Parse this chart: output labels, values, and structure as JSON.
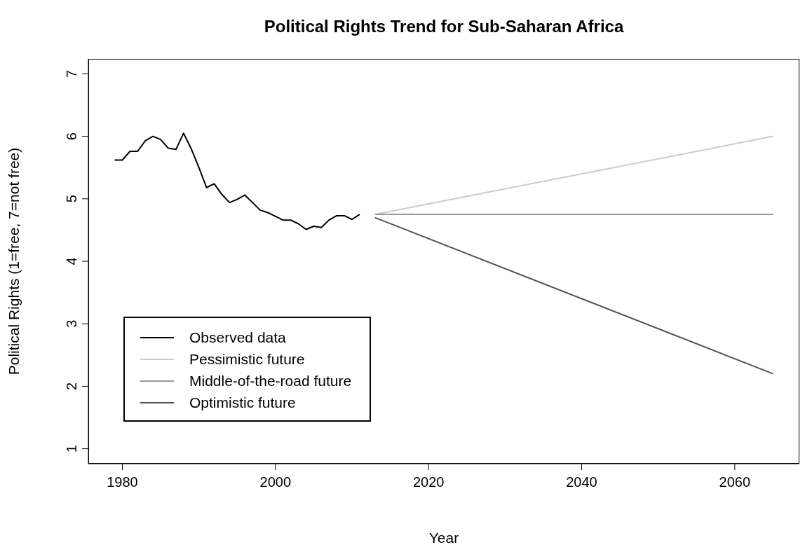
{
  "chart_data": {
    "type": "line",
    "title": "Political Rights Trend for Sub-Saharan Africa",
    "xlabel": "Year",
    "ylabel": "Political Rights (1=free, 7=not free)",
    "xlim": [
      1975.56,
      2068.44
    ],
    "xticks": [
      1980,
      2000,
      2020,
      2040,
      2060
    ],
    "ylim": [
      0.76,
      7.24
    ],
    "yticks": [
      1,
      2,
      3,
      4,
      5,
      6,
      7
    ],
    "grid": false,
    "legend": "bottom left",
    "marker": "none",
    "line_style": "solid",
    "series": [
      {
        "name": "Observed data",
        "color": "#000000",
        "x": [
          1979,
          1980,
          1981,
          1982,
          1983,
          1984,
          1985,
          1986,
          1987,
          1988,
          1989,
          1990,
          1991,
          1992,
          1993,
          1994,
          1995,
          1996,
          1997,
          1998,
          1999,
          2000,
          2001,
          2002,
          2003,
          2004,
          2005,
          2006,
          2007,
          2008,
          2009,
          2010,
          2011
        ],
        "values": [
          5.62,
          5.62,
          5.76,
          5.76,
          5.93,
          6.0,
          5.95,
          5.81,
          5.79,
          6.05,
          5.8,
          5.5,
          5.18,
          5.24,
          5.07,
          4.94,
          4.99,
          5.06,
          4.94,
          4.82,
          4.78,
          4.72,
          4.66,
          4.66,
          4.6,
          4.51,
          4.56,
          4.54,
          4.66,
          4.73,
          4.73,
          4.67,
          4.75
        ]
      },
      {
        "name": "Pessimistic future",
        "color": "#cccccc",
        "x": [
          2013,
          2065
        ],
        "values": [
          4.75,
          6.0
        ]
      },
      {
        "name": "Middle-of-the-road future",
        "color": "#999999",
        "x": [
          2013,
          2065
        ],
        "values": [
          4.75,
          4.75
        ]
      },
      {
        "name": "Optimistic future",
        "color": "#555555",
        "x": [
          2013,
          2065
        ],
        "values": [
          4.7,
          2.2
        ]
      }
    ]
  }
}
